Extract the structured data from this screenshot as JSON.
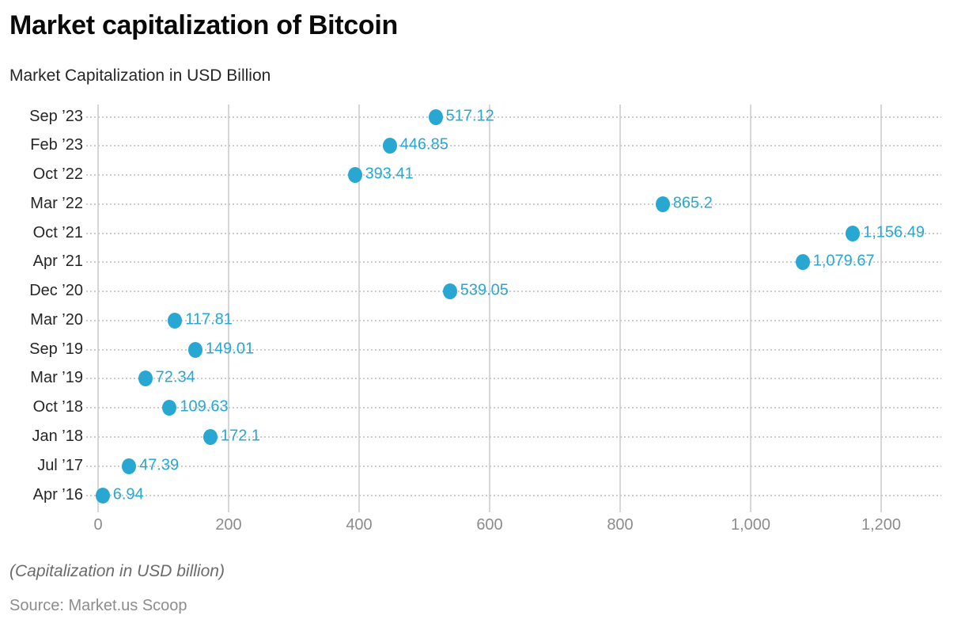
{
  "header": {
    "title": "Market capitalization of Bitcoin",
    "subtitle": "Market Capitalization in USD Billion"
  },
  "footer": {
    "note": "(Capitalization in USD billion)",
    "source": "Source: Market.us Scoop"
  },
  "chart_data": {
    "type": "scatter",
    "orientation": "horizontal-dot-plot",
    "title": "Market capitalization of Bitcoin",
    "subtitle": "Market Capitalization in USD Billion",
    "xlabel": "",
    "ylabel": "",
    "categories": [
      "Sep ’23",
      "Feb ’23",
      "Oct ’22",
      "Mar ’22",
      "Oct ’21",
      "Apr ’21",
      "Dec ’20",
      "Mar ’20",
      "Sep ’19",
      "Mar ’19",
      "Oct ’18",
      "Jan ’18",
      "Jul ’17",
      "Apr ’16"
    ],
    "values": [
      517.12,
      446.85,
      393.41,
      865.2,
      1156.49,
      1079.67,
      539.05,
      117.81,
      149.01,
      72.34,
      109.63,
      172.1,
      47.39,
      6.94
    ],
    "value_labels": [
      "517.12",
      "446.85",
      "393.41",
      "865.2",
      "1,156.49",
      "1,079.67",
      "539.05",
      "117.81",
      "149.01",
      "72.34",
      "109.63",
      "172.1",
      "47.39",
      "6.94"
    ],
    "xlim": [
      0,
      1292
    ],
    "xticks": {
      "values": [
        0,
        200,
        400,
        600,
        800,
        1000,
        1200
      ],
      "labels": [
        "0",
        "200",
        "400",
        "600",
        "800",
        "1,000",
        "1,200"
      ]
    },
    "grid": "vertical solid gridlines at each x tick; dotted horizontal leader line per category row",
    "legend": "none",
    "colors": {
      "dot": "#28a7d2",
      "value_label": "#28a7d2",
      "category_label": "#262626",
      "tick_label": "#8c8c8c",
      "grid_line": "#d7d7d7",
      "row_dotted_line": "#cbcbcb"
    }
  }
}
